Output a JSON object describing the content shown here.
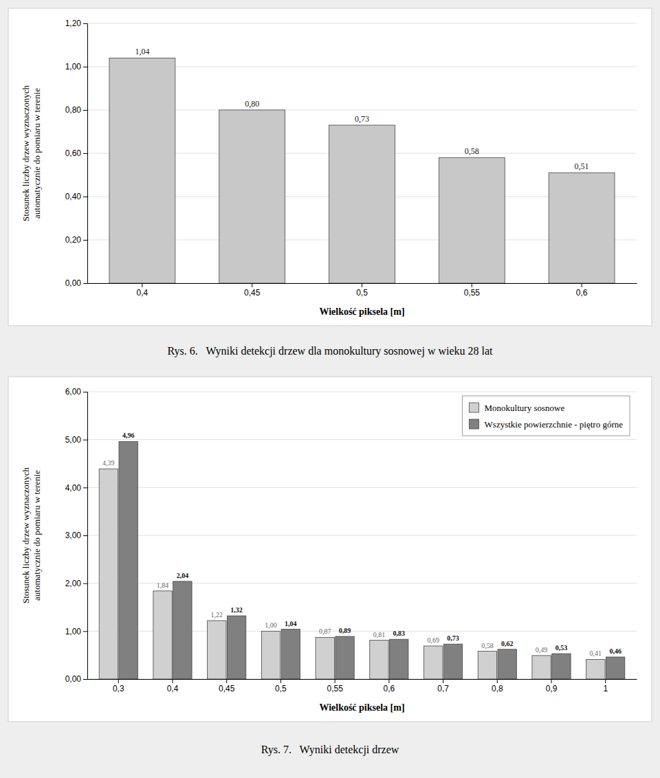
{
  "chart_data": [
    {
      "type": "bar",
      "title": "Rys. 6.   Wyniki detekcji drzew dla monokultury sosnowej w wieku 28 lat",
      "xlabel": "Wielkość piksela [m]",
      "ylabel": "Stosunek liczby drzew wyznaczonych\nautomatycznie do pomiaru w terenie",
      "categories": [
        "0,4",
        "0,45",
        "0,5",
        "0,55",
        "0,6"
      ],
      "values": [
        1.04,
        0.8,
        0.73,
        0.58,
        0.51
      ],
      "value_labels": [
        "1,04",
        "0,80",
        "0,73",
        "0,58",
        "0,51"
      ],
      "color": "#c8c8c8",
      "ylim": [
        0.0,
        1.2
      ],
      "yticks": [
        {
          "value": 0.0,
          "label": "0,00"
        },
        {
          "value": 0.2,
          "label": "0,20"
        },
        {
          "value": 0.4,
          "label": "0,40"
        },
        {
          "value": 0.6,
          "label": "0,60"
        },
        {
          "value": 0.8,
          "label": "0,80"
        },
        {
          "value": 1.0,
          "label": "1,00"
        },
        {
          "value": 1.2,
          "label": "1,20"
        }
      ],
      "grid": true,
      "data_labels": true
    },
    {
      "type": "bar",
      "title": "Rys. 7.   Wyniki detekcji drzew",
      "xlabel": "Wielkość piksela [m]",
      "ylabel": "Stosunek liczby drzew wyznaczonych\nautomatycznie do pomiaru w terenie",
      "categories": [
        "0,3",
        "0,4",
        "0,45",
        "0,5",
        "0,55",
        "0,6",
        "0,7",
        "0,8",
        "0,9",
        "1"
      ],
      "series": [
        {
          "name": "Monokultury sosnowe",
          "color": "#d0d0d0",
          "values": [
            4.39,
            1.84,
            1.22,
            1.0,
            0.87,
            0.81,
            0.69,
            0.58,
            0.49,
            0.41
          ],
          "value_labels": [
            "4,39",
            "1,84",
            "1,22",
            "1,00",
            "0,87",
            "0,81",
            "0,69",
            "0,58",
            "0,49",
            "0,41"
          ]
        },
        {
          "name": "Wszystkie powierzchnie - piętro górne",
          "color": "#808080",
          "values": [
            4.96,
            2.04,
            1.32,
            1.04,
            0.89,
            0.83,
            0.73,
            0.62,
            0.53,
            0.46
          ],
          "value_labels": [
            "4,96",
            "2,04",
            "1,32",
            "1,04",
            "0,89",
            "0,83",
            "0,73",
            "0,62",
            "0,53",
            "0,46"
          ]
        }
      ],
      "ylim": [
        0.0,
        6.0
      ],
      "yticks": [
        {
          "value": 0.0,
          "label": "0,00"
        },
        {
          "value": 1.0,
          "label": "1,00"
        },
        {
          "value": 2.0,
          "label": "2,00"
        },
        {
          "value": 3.0,
          "label": "3,00"
        },
        {
          "value": 4.0,
          "label": "4,00"
        },
        {
          "value": 5.0,
          "label": "5,00"
        },
        {
          "value": 6.0,
          "label": "6,00"
        }
      ],
      "grid": true,
      "legend": "upper right",
      "data_labels": true
    }
  ]
}
